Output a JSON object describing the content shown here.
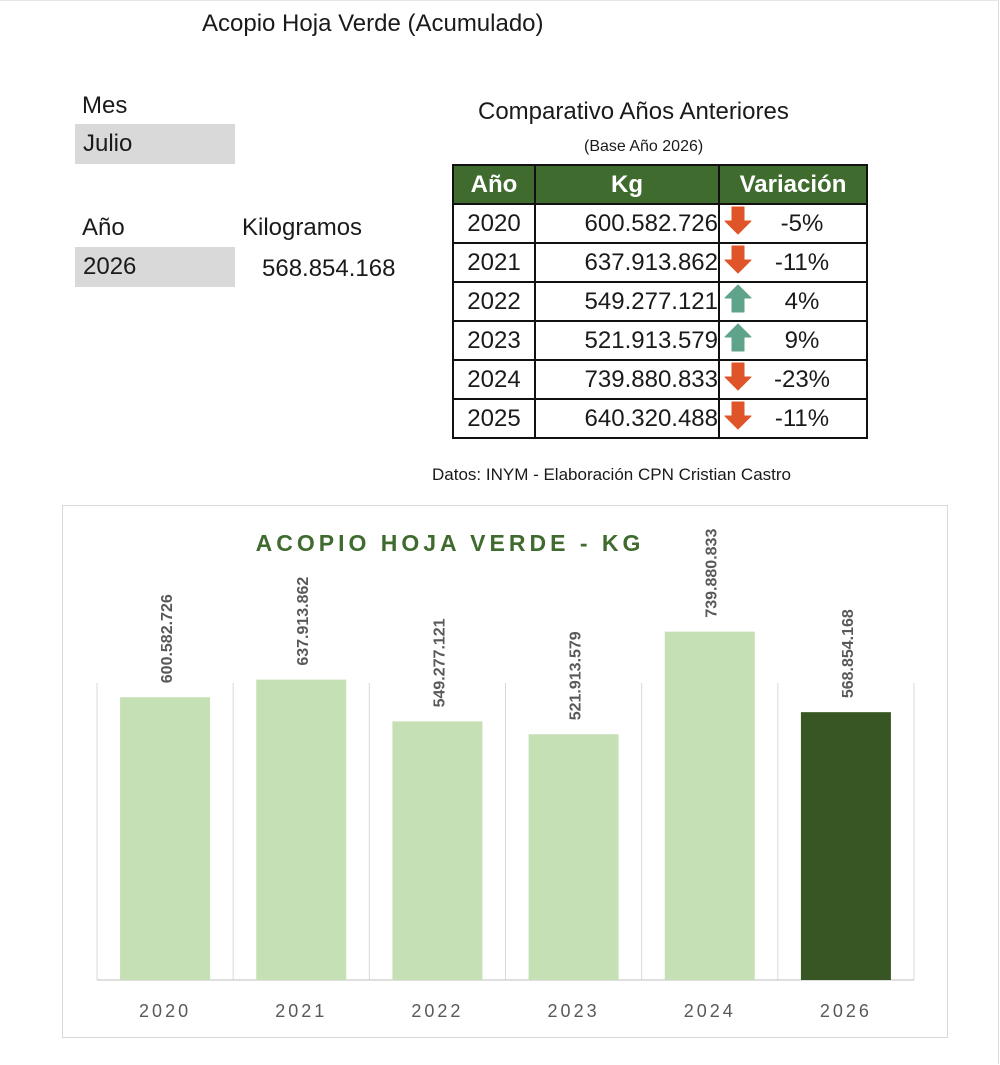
{
  "title": "Acopio Hoja Verde (Acumulado)",
  "mes": {
    "label": "Mes",
    "value": "Julio"
  },
  "anio": {
    "label": "Año",
    "value": "2026"
  },
  "kilogramos": {
    "label": "Kilogramos",
    "value": "568.854.168"
  },
  "comparativo": {
    "title": "Comparativo Años Anteriores",
    "subtitle": "(Base Año 2026)",
    "headers": [
      "Año",
      "Kg",
      "Variación"
    ],
    "rows": [
      {
        "year": "2020",
        "kg": "600.582.726",
        "var": "-5%",
        "trend": "down"
      },
      {
        "year": "2021",
        "kg": "637.913.862",
        "var": "-11%",
        "trend": "down"
      },
      {
        "year": "2022",
        "kg": "549.277.121",
        "var": "4%",
        "trend": "up"
      },
      {
        "year": "2023",
        "kg": "521.913.579",
        "var": "9%",
        "trend": "up"
      },
      {
        "year": "2024",
        "kg": "739.880.833",
        "var": "-23%",
        "trend": "down"
      },
      {
        "year": "2025",
        "kg": "640.320.488",
        "var": "-11%",
        "trend": "down"
      }
    ]
  },
  "source": "Datos: INYM - Elaboración CPN Cristian Castro",
  "colors": {
    "header_green": "#3f6b2e",
    "bar_light": "#c5e0b4",
    "bar_highlight": "#375623",
    "arrow_down": "#e0542a",
    "arrow_up": "#5fa38a"
  },
  "chart_data": {
    "type": "bar",
    "title": "ACOPIO HOJA VERDE - KG",
    "categories": [
      "2020",
      "2021",
      "2022",
      "2023",
      "2024",
      "2026"
    ],
    "values": [
      600582726,
      637913862,
      549277121,
      521913579,
      739880833,
      568854168
    ],
    "value_labels": [
      "600.582.726",
      "637.913.862",
      "549.277.121",
      "521.913.579",
      "739.880.833",
      "568.854.168"
    ],
    "highlight_category": "2026",
    "xlabel": "",
    "ylabel": "",
    "ylim": [
      0,
      1200000000
    ],
    "grid": "vertical separators",
    "legend": "none"
  }
}
